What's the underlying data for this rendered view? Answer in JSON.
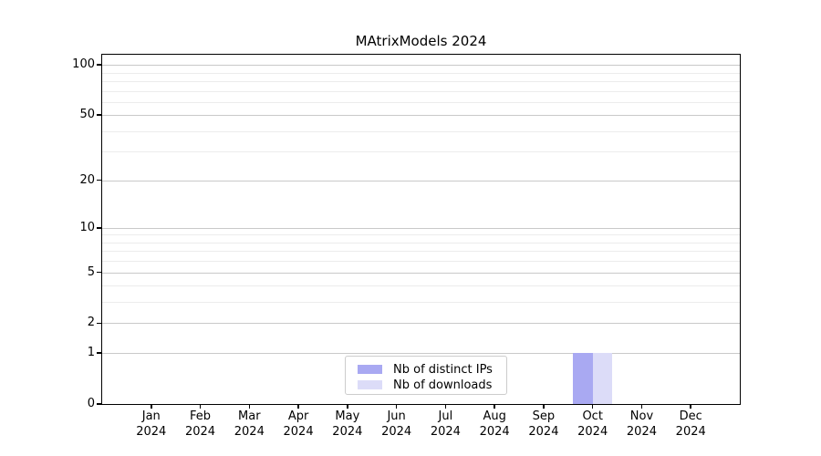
{
  "chart_data": {
    "type": "bar",
    "title": "MAtrixModels 2024",
    "categories": [
      "Jan",
      "Feb",
      "Mar",
      "Apr",
      "May",
      "Jun",
      "Jul",
      "Aug",
      "Sep",
      "Oct",
      "Nov",
      "Dec"
    ],
    "category_year_line": "2024",
    "series": [
      {
        "name": "Nb of distinct IPs",
        "color": "#a9a9f2",
        "values": [
          0,
          0,
          0,
          0,
          0,
          0,
          0,
          0,
          0,
          1,
          0,
          0
        ]
      },
      {
        "name": "Nb of downloads",
        "color": "#dcdcf8",
        "values": [
          0,
          0,
          0,
          0,
          0,
          0,
          0,
          0,
          0,
          1,
          0,
          0
        ]
      }
    ],
    "xlabel": "",
    "ylabel": "",
    "yscale": "log1p",
    "ylim": [
      0,
      115
    ],
    "yticks": [
      0,
      1,
      2,
      5,
      10,
      20,
      50,
      100
    ],
    "yticks_minor": [
      3,
      4,
      6,
      7,
      8,
      9,
      30,
      40,
      60,
      70,
      80,
      90
    ],
    "grid": "horizontal, major and minor",
    "legend_position": "lower center",
    "colors": {
      "axis": "#000000",
      "grid_major": "#c9c9c9",
      "grid_minor": "#ececec",
      "background": "#ffffff"
    }
  }
}
